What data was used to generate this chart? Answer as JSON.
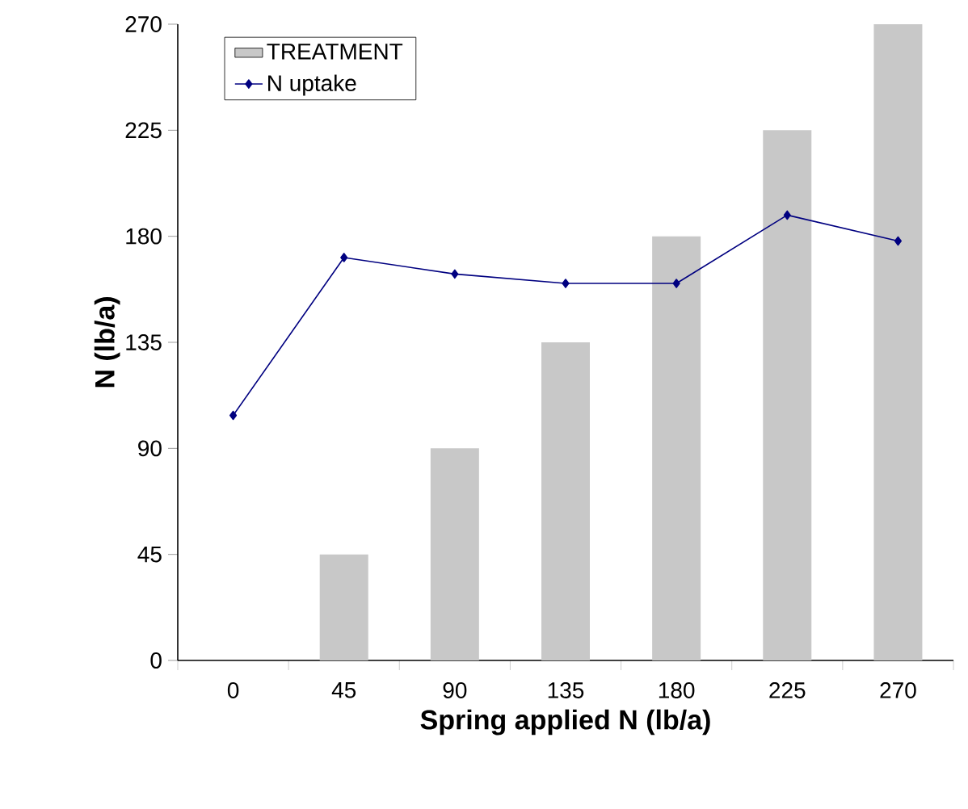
{
  "chart_data": {
    "type": "bar",
    "xlabel": "Spring applied N (lb/a)",
    "ylabel": "N (lb/a)",
    "categories": [
      "0",
      "45",
      "90",
      "135",
      "180",
      "225",
      "270"
    ],
    "series": [
      {
        "name": "TREATMENT",
        "color": "#c8c8c8",
        "values": [
          0,
          45,
          90,
          135,
          180,
          225,
          270
        ]
      },
      {
        "name": "N uptake",
        "type": "line",
        "color": "#000080",
        "marker": "diamond",
        "values": [
          104,
          171,
          164,
          160,
          160,
          189,
          178
        ]
      }
    ],
    "ylim": [
      0,
      270
    ],
    "yticks": [
      0,
      45,
      90,
      135,
      180,
      225,
      270
    ],
    "legend": "top left",
    "grid": false
  }
}
